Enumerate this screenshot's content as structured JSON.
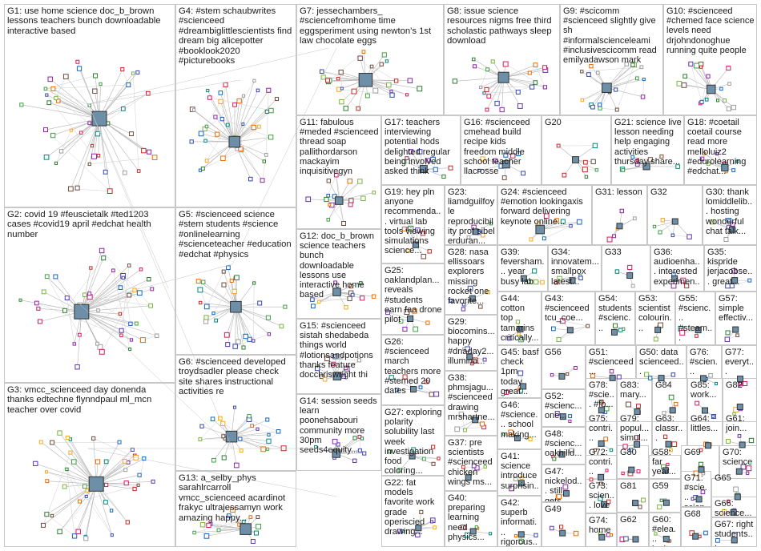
{
  "groups": [
    {
      "id": "G1",
      "label": "G1: use home science doc_b_brown lessons teachers bunch downloadable interactive based"
    },
    {
      "id": "G2",
      "label": "G2: covid 19 #feuscietalk #ted1203 cases #covid19 april #edchat health number"
    },
    {
      "id": "G3",
      "label": "G3: vmcc_scienceed day donenda thanks edtechne flynndpaul ml_mcn teacher over covid"
    },
    {
      "id": "G4",
      "label": "G4: #stem schaubwrites #scienceed #dreambiglittlescientists find dream big alicepotter #booklook2020 #picturebooks"
    },
    {
      "id": "G5",
      "label": "G5: #scienceed science #stem students #science #onlinelearning #scienceteacher #education #edchat #physics"
    },
    {
      "id": "G6",
      "label": "G6: #scienceed developed troydsadler please check site shares instructional activities re"
    },
    {
      "id": "G7",
      "label": "G7: jessechambers_ #sciencefromhome time eggsperiment using newton's 1st law chocolate eggs"
    },
    {
      "id": "G8",
      "label": "G8: issue science resources nigms free third scholastic pathways sleep download"
    },
    {
      "id": "G9",
      "label": "G9: #scicomm #scienceed slightly give sh #informalscienceleami #inclusivescicomm read emilyadawson mark"
    },
    {
      "id": "G10",
      "label": "G10: #scienceed #chemed face science levels need drjohndonoghue running quite people"
    },
    {
      "id": "G11",
      "label": "G11: fabulous #meded #scienceed thread soap pallithordarson mackayim inquisitivegyn"
    },
    {
      "id": "G12",
      "label": "G12: doc_b_brown science teachers bunch downloadable lessons use interactive home based"
    },
    {
      "id": "G13",
      "label": "G13: a_selby_phys sarahlrcarroll vmcc_scienceed acardinot frakyc ultrajessamyn work amazing happy..."
    },
    {
      "id": "G14",
      "label": "G14: session seeds learn poonehsabouri community more 30pm seeds4equity..."
    },
    {
      "id": "G15",
      "label": "G15: #scienceed sistah shedabeda things world #lotionsandpotions thanks feature docchriswright thi"
    },
    {
      "id": "G16",
      "label": "G16: #scienceed cmehead build recipe kids freedom middle school teacher llacrosse"
    },
    {
      "id": "G17",
      "label": "G17: teachers interviewing potential hods delighted regular being involved asked think"
    },
    {
      "id": "G18",
      "label": "G18: #coetail coetail course read more melloluiz2 #edurolearning #edchat..."
    },
    {
      "id": "G19",
      "label": "G19: hey pln anyone recommenda... virtual lab tools viewing simulations science..."
    },
    {
      "id": "G20",
      "label": "G20"
    },
    {
      "id": "G21",
      "label": "G21: science live lesson needing help engaging activities thursday share..."
    },
    {
      "id": "G22",
      "label": "G22: fat models favorite work grade operiscied drawing..."
    },
    {
      "id": "G23",
      "label": "G23: liamdguilfoyle reproducibility prof sibel erduran..."
    },
    {
      "id": "G24",
      "label": "G24: #scienceed #emotion lookingaxis forward delivering keynote online..."
    },
    {
      "id": "G25",
      "label": "G25: oaklandplan... reveals #students earn faa drone pilot"
    },
    {
      "id": "G26",
      "label": "G26: #scienceed march teachers more #stemed 20 dates"
    },
    {
      "id": "G27",
      "label": "G27: exploring polarity solubility last week investigation food coloring..."
    },
    {
      "id": "G28",
      "label": "G28: nasa ellissoars explorers missing rocket one favorite..."
    },
    {
      "id": "G29",
      "label": "G29: biocomins... happy #dnaday2... illumina..."
    },
    {
      "id": "G30",
      "label": "G30: thank lomiddlelib... hosting wonderful chat talk..."
    },
    {
      "id": "G31",
      "label": "G31: lesson"
    },
    {
      "id": "G32",
      "label": "G32"
    },
    {
      "id": "G33",
      "label": "G33"
    },
    {
      "id": "G34",
      "label": "G34: innovatem... smallpox latest..."
    },
    {
      "id": "G35",
      "label": "G35: kispride jerjacobse... great..."
    },
    {
      "id": "G36",
      "label": "G36: audioenha... interested experimen..."
    },
    {
      "id": "G37",
      "label": "G37: pre scientists #scienceed chicken wings ms..."
    },
    {
      "id": "G38",
      "label": "G38: phmsjagu... #scienceed drawing mrshartne..."
    },
    {
      "id": "G39",
      "label": "G39: feversham... year busy lab"
    },
    {
      "id": "G40",
      "label": "G40: preparing learning need physics..."
    },
    {
      "id": "G41",
      "label": "G41: science introduce surprisin..."
    },
    {
      "id": "G42",
      "label": "G42: superb informati... rigorous..."
    },
    {
      "id": "G43",
      "label": "G43: #scienceed tcu_coe..."
    },
    {
      "id": "G44",
      "label": "G44: cotton top tamarins critically..."
    },
    {
      "id": "G45",
      "label": "G45: basf check 1pm today great..."
    },
    {
      "id": "G46",
      "label": "G46: #science... school making..."
    },
    {
      "id": "G47",
      "label": "G47: nickelod... still gets..."
    },
    {
      "id": "G48",
      "label": "G48: #scienc... oakhilld..."
    },
    {
      "id": "G49",
      "label": "G49"
    },
    {
      "id": "G50",
      "label": "G50: data scienceed..."
    },
    {
      "id": "G51",
      "label": "G51: #scienceed..."
    },
    {
      "id": "G52",
      "label": "G52: #scienc... one..."
    },
    {
      "id": "G53",
      "label": "G53: scientist colourin..."
    },
    {
      "id": "G54",
      "label": "G54: students #scienc..."
    },
    {
      "id": "G55",
      "label": "G55: #scienc... #steam..."
    },
    {
      "id": "G56",
      "label": "G56"
    },
    {
      "id": "G57",
      "label": "G57: simple effectiv..."
    },
    {
      "id": "G58",
      "label": "G58: far year..."
    },
    {
      "id": "G59",
      "label": "G59"
    },
    {
      "id": "G60",
      "label": "G60: #elea... jupiter..."
    },
    {
      "id": "G61",
      "label": "G61: join..."
    },
    {
      "id": "G62",
      "label": "G62"
    },
    {
      "id": "G63",
      "label": "G63: classr..."
    },
    {
      "id": "G64",
      "label": "G64: littles..."
    },
    {
      "id": "G65",
      "label": "G65"
    },
    {
      "id": "G66",
      "label": "G66: science..."
    },
    {
      "id": "G67",
      "label": "G67: right students..."
    },
    {
      "id": "G68",
      "label": "G68"
    },
    {
      "id": "G69",
      "label": "G69"
    },
    {
      "id": "G70",
      "label": "G70: science"
    },
    {
      "id": "G71",
      "label": "G71: #scie... scien..."
    },
    {
      "id": "G72",
      "label": "G72: contri..."
    },
    {
      "id": "G73",
      "label": "G73: scien... love"
    },
    {
      "id": "G74",
      "label": "G74: home"
    },
    {
      "id": "G75",
      "label": "G75: contri..."
    },
    {
      "id": "G76",
      "label": "G76: #scien..."
    },
    {
      "id": "G77",
      "label": "G77: everyt..."
    },
    {
      "id": "G78",
      "label": "G78: #scie... #fb..."
    },
    {
      "id": "G79",
      "label": "G79: popul... simul..."
    },
    {
      "id": "G80",
      "label": "G80"
    },
    {
      "id": "G81",
      "label": "G81"
    },
    {
      "id": "G82",
      "label": "G82"
    },
    {
      "id": "G83",
      "label": "G83: mary..."
    },
    {
      "id": "G84",
      "label": "G84"
    },
    {
      "id": "G85",
      "label": "G85: work..."
    }
  ]
}
